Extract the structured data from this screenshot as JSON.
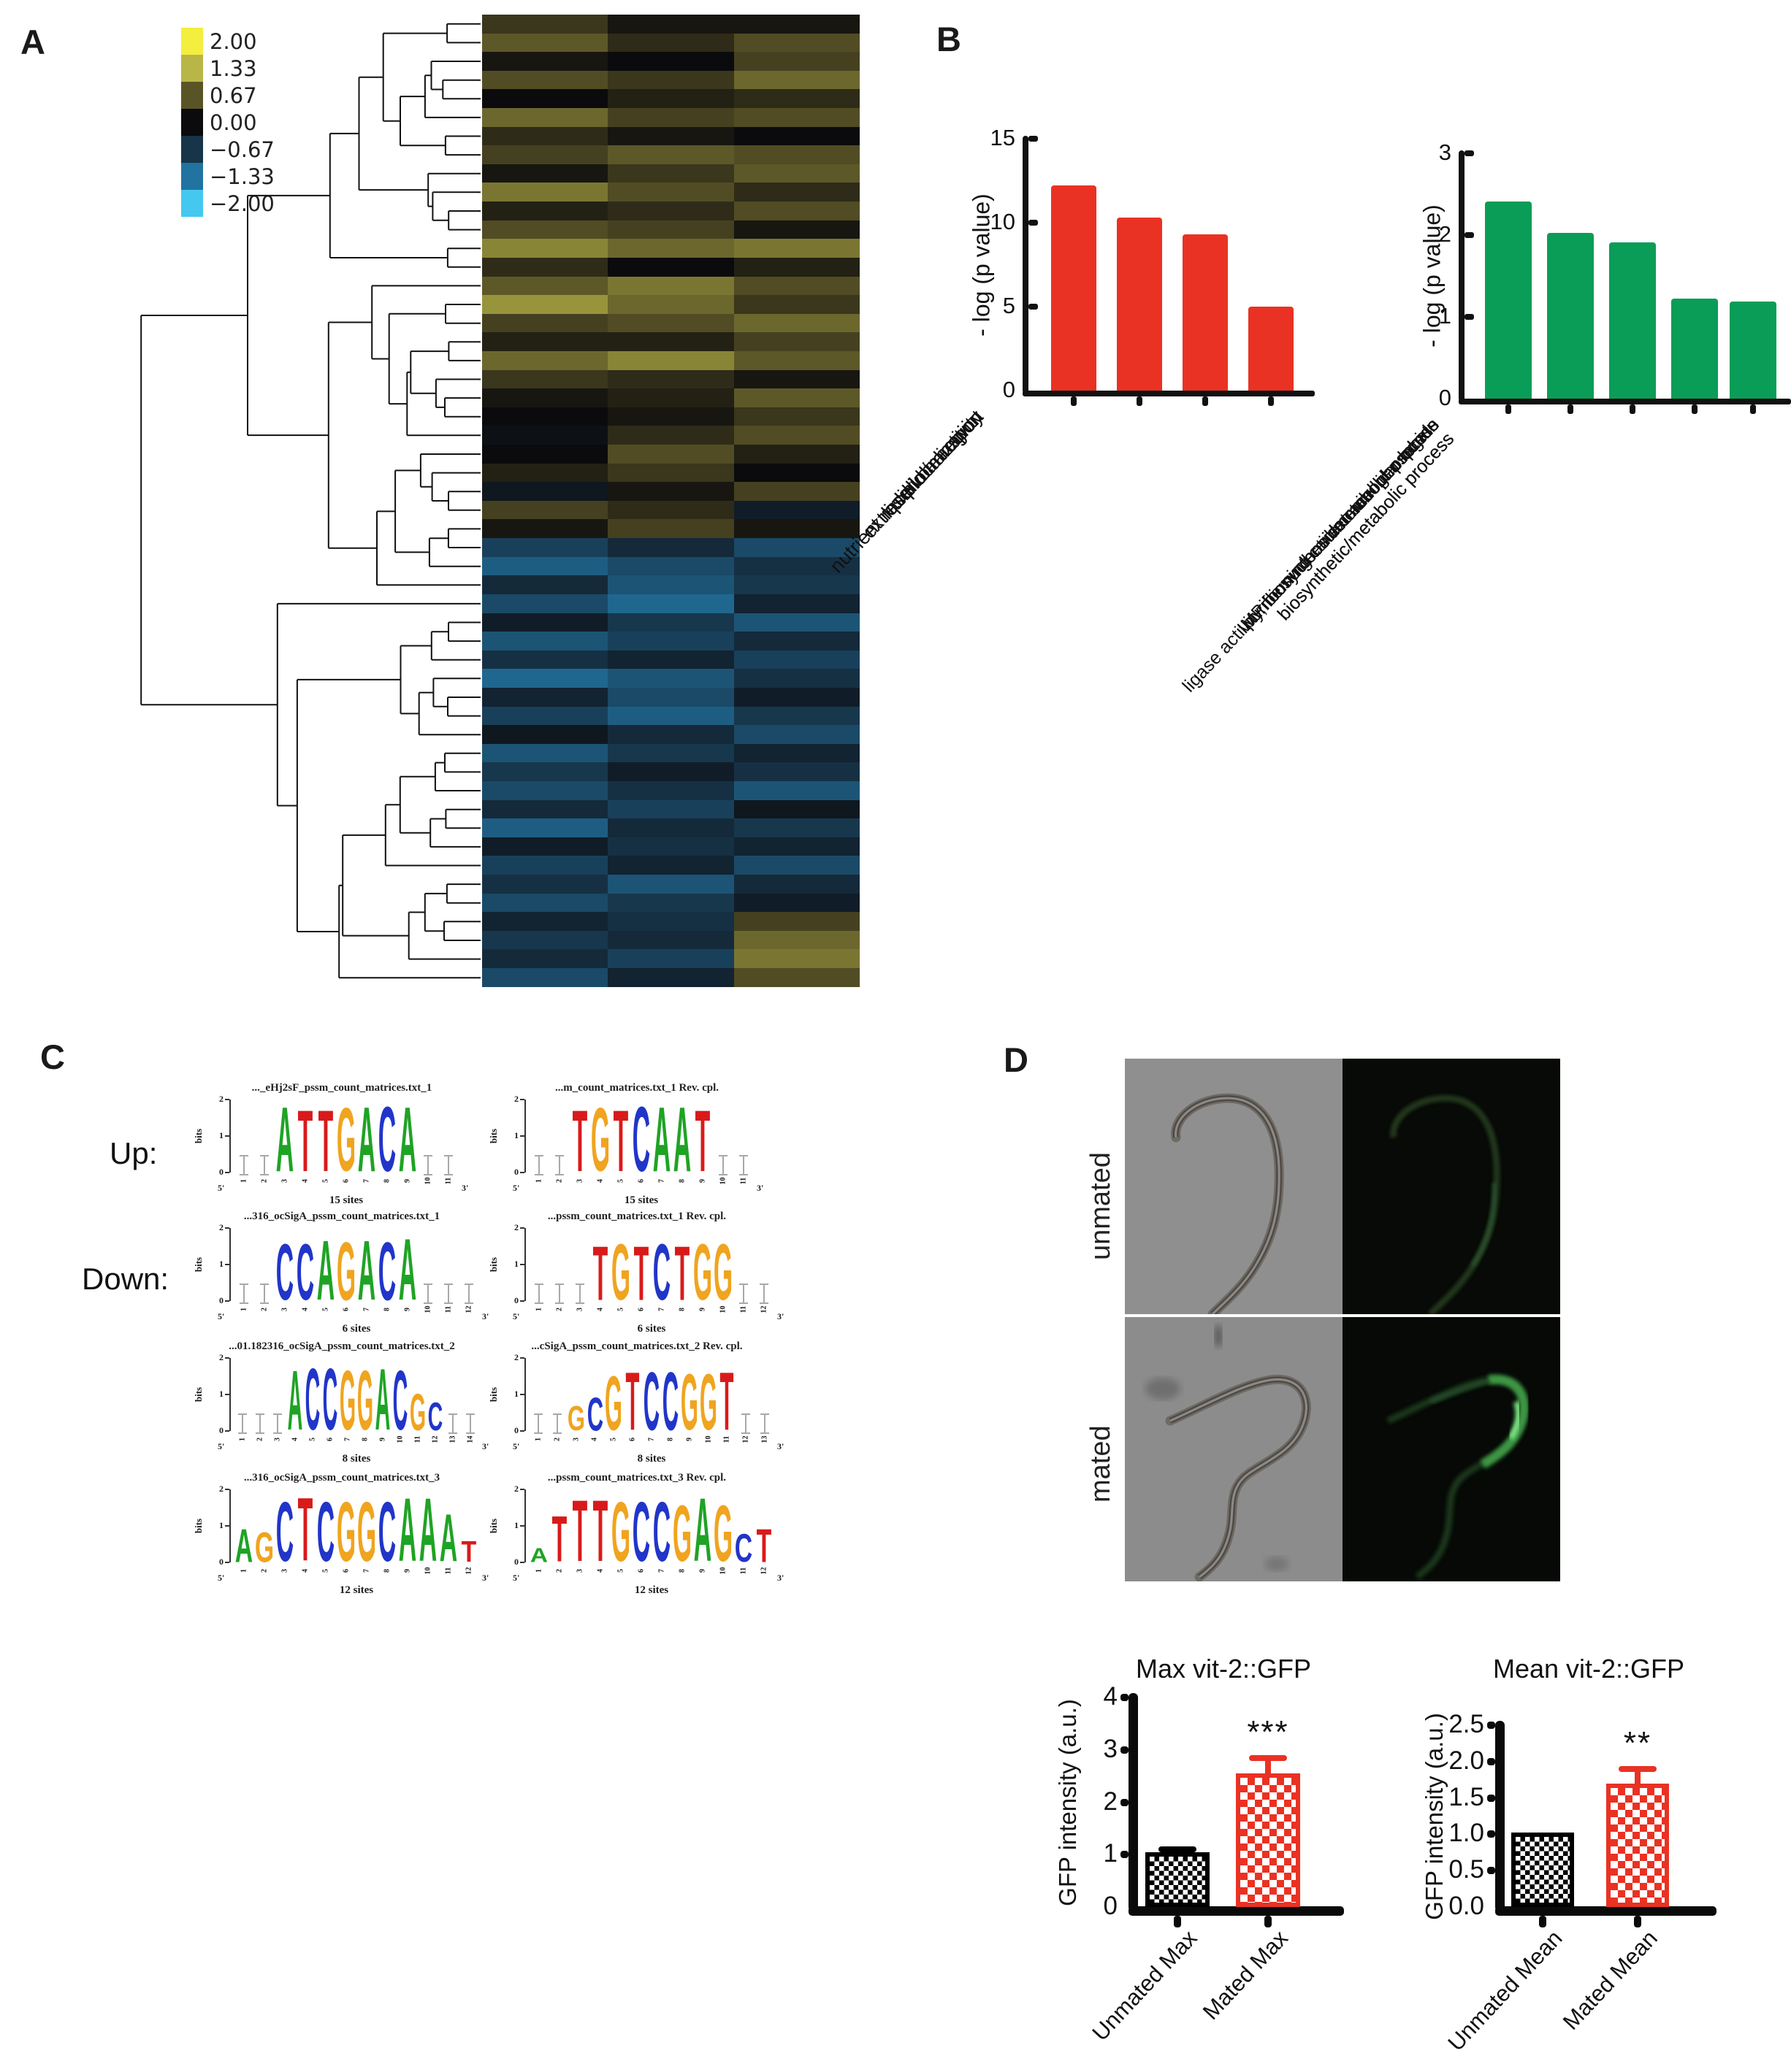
{
  "panels": {
    "a": "A",
    "b": "B",
    "c": "C",
    "d": "D"
  },
  "heatmap": {
    "legend": {
      "values": [
        "2.00",
        "1.33",
        "0.67",
        "0.00",
        "−0.67",
        "−1.33",
        "−2.00"
      ],
      "colors": [
        "#f4ee3e",
        "#b9b648",
        "#595426",
        "#0b0b0d",
        "#173449",
        "#2173a0",
        "#45c8f0"
      ]
    },
    "scale_anchors": [
      {
        "v": 2.0,
        "c": "#f4ee3e"
      },
      {
        "v": 1.33,
        "c": "#b9b648"
      },
      {
        "v": 0.67,
        "c": "#595426"
      },
      {
        "v": 0.0,
        "c": "#0b0b0d"
      },
      {
        "v": -0.67,
        "c": "#173449"
      },
      {
        "v": -1.33,
        "c": "#2173a0"
      },
      {
        "v": -2.0,
        "c": "#45c8f0"
      }
    ],
    "columns": 3,
    "rows": [
      [
        0.4,
        0.1,
        0.1
      ],
      [
        0.7,
        0.3,
        0.6
      ],
      [
        0.1,
        0.0,
        0.5
      ],
      [
        0.6,
        0.4,
        0.8
      ],
      [
        0.0,
        0.2,
        0.3
      ],
      [
        0.8,
        0.5,
        0.6
      ],
      [
        0.3,
        0.1,
        0.0
      ],
      [
        0.5,
        0.7,
        0.6
      ],
      [
        0.1,
        0.4,
        0.7
      ],
      [
        0.9,
        0.6,
        0.3
      ],
      [
        0.2,
        0.3,
        0.6
      ],
      [
        0.6,
        0.5,
        0.1
      ],
      [
        1.0,
        0.8,
        0.9
      ],
      [
        0.3,
        0.0,
        0.2
      ],
      [
        0.7,
        0.9,
        0.6
      ],
      [
        1.1,
        0.8,
        0.4
      ],
      [
        0.5,
        0.6,
        0.8
      ],
      [
        0.2,
        0.2,
        0.5
      ],
      [
        0.8,
        1.0,
        0.7
      ],
      [
        0.4,
        0.3,
        0.1
      ],
      [
        0.1,
        0.2,
        0.7
      ],
      [
        0.0,
        0.1,
        0.4
      ],
      [
        -0.1,
        0.3,
        0.6
      ],
      [
        0.0,
        0.6,
        0.2
      ],
      [
        0.2,
        0.4,
        0.0
      ],
      [
        -0.2,
        0.1,
        0.5
      ],
      [
        0.5,
        0.3,
        -0.3
      ],
      [
        0.1,
        0.5,
        0.1
      ],
      [
        -0.8,
        -0.5,
        -0.9
      ],
      [
        -1.1,
        -0.9,
        -0.6
      ],
      [
        -0.5,
        -1.0,
        -0.7
      ],
      [
        -0.9,
        -1.2,
        -0.4
      ],
      [
        -0.3,
        -0.7,
        -1.0
      ],
      [
        -1.0,
        -0.8,
        -0.5
      ],
      [
        -0.6,
        -0.4,
        -0.8
      ],
      [
        -1.2,
        -1.0,
        -0.6
      ],
      [
        -0.4,
        -0.9,
        -0.3
      ],
      [
        -0.8,
        -1.1,
        -0.7
      ],
      [
        -0.2,
        -0.5,
        -0.9
      ],
      [
        -1.0,
        -0.7,
        -0.4
      ],
      [
        -0.7,
        -0.3,
        -0.6
      ],
      [
        -0.9,
        -0.6,
        -1.0
      ],
      [
        -0.5,
        -0.8,
        -0.2
      ],
      [
        -1.1,
        -0.5,
        -0.7
      ],
      [
        -0.3,
        -0.6,
        -0.4
      ],
      [
        -0.8,
        -0.4,
        -0.9
      ],
      [
        -0.6,
        -1.0,
        -0.5
      ],
      [
        -0.9,
        -0.7,
        -0.3
      ],
      [
        -0.4,
        -0.6,
        0.5
      ],
      [
        -0.7,
        -0.5,
        0.8
      ],
      [
        -0.5,
        -0.8,
        0.9
      ],
      [
        -0.9,
        -0.4,
        0.6
      ]
    ]
  },
  "chart_data": [
    {
      "type": "bar",
      "panel": "B-left",
      "title": "",
      "ylabel": "- log (p value)",
      "categories": [
        "nutrient reservoir activity",
        "lipid transport",
        "lipid localization",
        "extracellular region"
      ],
      "values": [
        12.2,
        10.3,
        9.3,
        5.0
      ],
      "ylim": [
        0,
        15
      ],
      "yticks": [
        "0",
        "5",
        "10",
        "15"
      ],
      "bar_color": "#e93223",
      "grid": false
    },
    {
      "type": "bar",
      "panel": "B-right",
      "title": "",
      "ylabel": "- log (p value)",
      "categories": [
        "IMP biosynthetic/metabolic process",
        "purine nucleoside monophosphate\nbiosynthetic/metabolic process",
        "ribonucleoside monophosphate\nbiosynthetic/metabolic process",
        "ligase activity, forming carbon-nitrogen bonds",
        "extracellular region"
      ],
      "values": [
        2.41,
        2.03,
        1.91,
        1.22,
        1.19
      ],
      "ylim": [
        0,
        3
      ],
      "yticks": [
        "0",
        "1",
        "2",
        "3"
      ],
      "bar_color": "#0a9d57",
      "grid": false
    },
    {
      "type": "bar",
      "panel": "D-left",
      "title": "Max vit-2::GFP",
      "ylabel": "GFP intensity (a.u.)",
      "categories": [
        "Unmated Max",
        "Mated Max"
      ],
      "values": [
        1.05,
        2.55
      ],
      "errors": [
        0.05,
        0.3
      ],
      "significance": [
        "",
        "***"
      ],
      "ylim": [
        0,
        4
      ],
      "yticks": [
        "0",
        "1",
        "2",
        "3",
        "4"
      ],
      "bar_colors": [
        "#000000",
        "#e93223"
      ],
      "grid": false
    },
    {
      "type": "bar",
      "panel": "D-right",
      "title": "Mean vit-2::GFP",
      "ylabel": "GFP intensity (a.u.)",
      "categories": [
        "Unmated Mean",
        "Mated Mean"
      ],
      "values": [
        1.02,
        1.7
      ],
      "errors": [
        0.0,
        0.2
      ],
      "significance": [
        "",
        "**"
      ],
      "ylim": [
        0,
        2.5
      ],
      "yticks": [
        "0.0",
        "0.5",
        "1.0",
        "1.5",
        "2.0",
        "2.5"
      ],
      "bar_colors": [
        "#000000",
        "#e93223"
      ],
      "grid": false
    }
  ],
  "motifs": {
    "up_label": "Up:",
    "down_label": "Down:",
    "bits_label": "bits",
    "five_prime": "5'",
    "three_prime": "3'",
    "base_colors": {
      "A": "#1fa325",
      "C": "#2135c9",
      "G": "#f0a41f",
      "T": "#d91a1a"
    },
    "items": [
      {
        "title": "..._eHj2sF_pssm_count_matrices.txt_1",
        "sites": "15 sites",
        "npos": 11,
        "start": 3,
        "letters": [
          [
            "A",
            1.85
          ],
          [
            "T",
            1.75
          ],
          [
            "T",
            1.75
          ],
          [
            "G",
            1.8
          ],
          [
            "A",
            1.85
          ],
          [
            "C",
            1.85
          ],
          [
            "A",
            1.85
          ]
        ]
      },
      {
        "title": "...m_count_matrices.txt_1  Rev. cpl.",
        "sites": "15 sites",
        "npos": 11,
        "start": 3,
        "letters": [
          [
            "T",
            1.75
          ],
          [
            "G",
            1.8
          ],
          [
            "T",
            1.75
          ],
          [
            "C",
            1.85
          ],
          [
            "A",
            1.85
          ],
          [
            "A",
            1.85
          ],
          [
            "T",
            1.75
          ]
        ]
      },
      {
        "title": "...316_ocSigA_pssm_count_matrices.txt_1",
        "sites": "6 sites",
        "npos": 12,
        "start": 3,
        "letters": [
          [
            "C",
            1.6
          ],
          [
            "C",
            1.6
          ],
          [
            "A",
            1.7
          ],
          [
            "G",
            1.65
          ],
          [
            "A",
            1.7
          ],
          [
            "C",
            1.65
          ],
          [
            "A",
            1.75
          ]
        ]
      },
      {
        "title": "...pssm_count_matrices.txt_1  Rev. cpl.",
        "sites": "6 sites",
        "npos": 12,
        "start": 4,
        "letters": [
          [
            "T",
            1.55
          ],
          [
            "G",
            1.6
          ],
          [
            "T",
            1.55
          ],
          [
            "C",
            1.6
          ],
          [
            "T",
            1.55
          ],
          [
            "G",
            1.6
          ],
          [
            "G",
            1.6
          ]
        ]
      },
      {
        "title": "...01.182316_ocSigA_pssm_count_matrices.txt_2",
        "sites": "8 sites",
        "npos": 14,
        "start": 4,
        "letters": [
          [
            "A",
            1.7
          ],
          [
            "C",
            1.75
          ],
          [
            "C",
            1.75
          ],
          [
            "G",
            1.7
          ],
          [
            "G",
            1.7
          ],
          [
            "A",
            1.75
          ],
          [
            "C",
            1.7
          ],
          [
            "G",
            1.05
          ],
          [
            "C",
            0.8
          ]
        ]
      },
      {
        "title": "...cSigA_pssm_count_matrices.txt_2  Rev. cpl.",
        "sites": "8 sites",
        "npos": 13,
        "start": 3,
        "letters": [
          [
            "G",
            0.7
          ],
          [
            "C",
            0.95
          ],
          [
            "G",
            1.55
          ],
          [
            "T",
            1.65
          ],
          [
            "C",
            1.65
          ],
          [
            "C",
            1.65
          ],
          [
            "G",
            1.6
          ],
          [
            "G",
            1.6
          ],
          [
            "T",
            1.65
          ]
        ]
      },
      {
        "title": "...316_ocSigA_pssm_count_matrices.txt_3",
        "sites": "12 sites",
        "npos": 12,
        "start": 1,
        "letters": [
          [
            "A",
            0.95
          ],
          [
            "G",
            0.85
          ],
          [
            "C",
            1.7
          ],
          [
            "T",
            1.8
          ],
          [
            "C",
            1.7
          ],
          [
            "G",
            1.7
          ],
          [
            "G",
            1.7
          ],
          [
            "C",
            1.7
          ],
          [
            "A",
            1.8
          ],
          [
            "A",
            1.8
          ],
          [
            "A",
            1.35
          ],
          [
            "T",
            0.6
          ]
        ]
      },
      {
        "title": "...pssm_count_matrices.txt_3  Rev. cpl.",
        "sites": "12 sites",
        "npos": 12,
        "start": 1,
        "letters": [
          [
            "A",
            0.4
          ],
          [
            "T",
            1.3
          ],
          [
            "T",
            1.75
          ],
          [
            "T",
            1.75
          ],
          [
            "G",
            1.7
          ],
          [
            "C",
            1.7
          ],
          [
            "C",
            1.7
          ],
          [
            "G",
            1.6
          ],
          [
            "A",
            1.8
          ],
          [
            "G",
            1.6
          ],
          [
            "C",
            0.8
          ],
          [
            "T",
            0.95
          ]
        ]
      }
    ]
  },
  "microscopy": {
    "row_labels": [
      "unmated",
      "mated"
    ]
  }
}
